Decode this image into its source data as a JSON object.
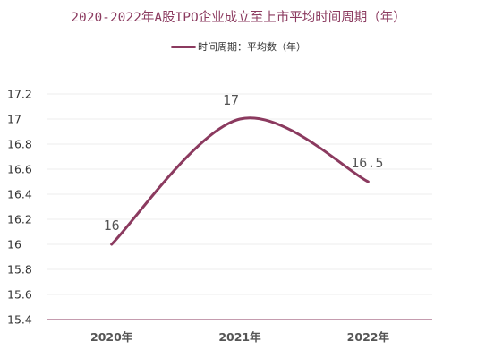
{
  "chart_data": {
    "type": "line",
    "title": "2020-2022年A股IPO企业成立至上市平均时间周期（年）",
    "categories": [
      "2020年",
      "2021年",
      "2022年"
    ],
    "series": [
      {
        "name": "时间周期：平均数（年）",
        "values": [
          16,
          17,
          16.5
        ],
        "color": "#8b3a5f"
      }
    ],
    "data_labels": [
      "16",
      "17",
      "16.5"
    ],
    "ylim": [
      15.4,
      17.2
    ],
    "yticks": [
      15.4,
      15.6,
      15.8,
      16,
      16.2,
      16.4,
      16.6,
      16.8,
      17,
      17.2
    ],
    "ytick_labels": [
      "15.4",
      "15.6",
      "15.8",
      "16",
      "16.2",
      "16.4",
      "16.6",
      "16.8",
      "17",
      "17.2"
    ],
    "xlabel": "",
    "ylabel": "",
    "grid": true,
    "smooth": true,
    "legend": "top-center",
    "axis_color": "#8b3a5f"
  }
}
